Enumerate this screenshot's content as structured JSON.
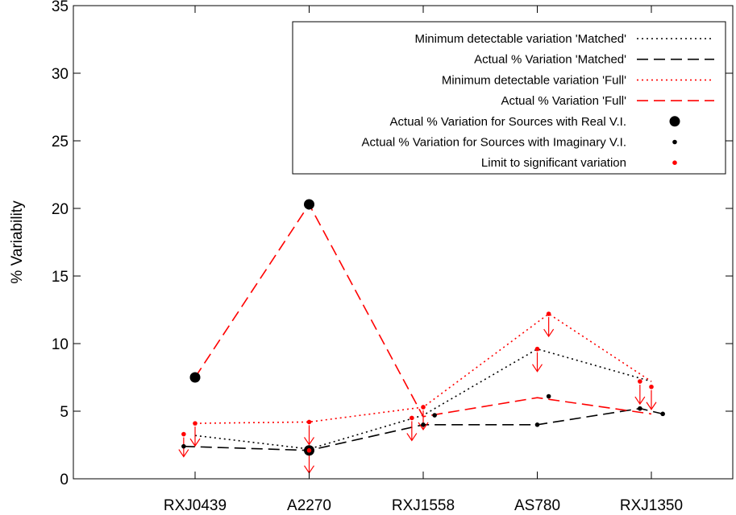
{
  "chart_data": {
    "type": "line",
    "ylabel": "% Variability",
    "xlabel": "",
    "categories": [
      "RXJ0439",
      "A2270",
      "RXJ1558",
      "AS780",
      "RXJ1350"
    ],
    "ylim": [
      0,
      35
    ],
    "yticks": [
      0,
      5,
      10,
      15,
      20,
      25,
      30,
      35
    ],
    "grid": false,
    "legend_position": "top-right",
    "colors": {
      "matched": "#000000",
      "full": "#ff0000"
    },
    "series": [
      {
        "name": "Minimum detectable variation 'Matched'",
        "style": "dotted",
        "color": "#000000",
        "points": [
          [
            0.0,
            3.2
          ],
          [
            1.0,
            2.2
          ],
          [
            2.0,
            4.7
          ],
          [
            3.0,
            9.6
          ],
          [
            4.0,
            7.2
          ]
        ]
      },
      {
        "name": "Actual % Variation 'Matched'",
        "style": "dashed",
        "color": "#000000",
        "points": [
          [
            -0.1,
            2.4
          ],
          [
            1.0,
            2.1
          ],
          [
            2.0,
            4.0
          ],
          [
            3.0,
            4.0
          ],
          [
            3.9,
            5.2
          ],
          [
            4.1,
            4.8
          ]
        ]
      },
      {
        "name": "Minimum detectable variation 'Full'",
        "style": "dotted",
        "color": "#ff0000",
        "points": [
          [
            0.0,
            4.1
          ],
          [
            1.0,
            4.2
          ],
          [
            2.0,
            5.3
          ],
          [
            3.1,
            12.2
          ],
          [
            4.0,
            7.2
          ]
        ]
      },
      {
        "name": "Actual % Variation 'Full'",
        "style": "dashed",
        "color": "#ff0000",
        "points": [
          [
            0.0,
            7.5
          ],
          [
            1.0,
            20.3
          ],
          [
            2.0,
            4.6
          ],
          [
            3.0,
            6.0
          ],
          [
            4.0,
            4.8
          ]
        ]
      }
    ],
    "markers": [
      {
        "name": "Actual % Variation for Sources with Real V.I.",
        "color": "#000000",
        "size": "large",
        "points": [
          [
            0.0,
            7.5
          ],
          [
            1.0,
            20.3
          ],
          [
            1.0,
            2.1
          ]
        ]
      },
      {
        "name": "Actual % Variation for Sources with Imaginary V.I.",
        "color": "#000000",
        "size": "small",
        "points": [
          [
            -0.1,
            2.4
          ],
          [
            2.0,
            4.0
          ],
          [
            2.1,
            4.7
          ],
          [
            3.0,
            4.0
          ],
          [
            3.1,
            6.1
          ],
          [
            3.9,
            5.2
          ],
          [
            4.1,
            4.8
          ]
        ]
      },
      {
        "name": "Limit to significant variation",
        "color": "#ff0000",
        "size": "small",
        "points": [
          [
            -0.1,
            3.3
          ],
          [
            0.0,
            4.1
          ],
          [
            1.0,
            4.2
          ],
          [
            1.0,
            2.1
          ],
          [
            1.9,
            4.5
          ],
          [
            2.0,
            5.3
          ],
          [
            3.0,
            9.6
          ],
          [
            3.1,
            12.2
          ],
          [
            3.9,
            7.2
          ],
          [
            4.0,
            6.8
          ]
        ]
      }
    ]
  }
}
